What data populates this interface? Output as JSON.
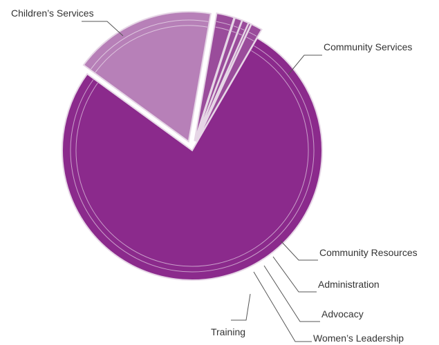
{
  "chart_data": {
    "type": "pie",
    "title": "",
    "slices": [
      {
        "label": "Children’s Services",
        "value": 76.7,
        "color": "#8b2a8c",
        "exploded": false
      },
      {
        "label": "Community Services",
        "value": 17.7,
        "color": "#b780b8",
        "exploded": true
      },
      {
        "label": "Community Resources",
        "value": 2.2,
        "color": "#9a4c9b",
        "exploded": true
      },
      {
        "label": "Administration",
        "value": 0.9,
        "color": "#9a4c9b",
        "exploded": true
      },
      {
        "label": "Advocacy",
        "value": 0.8,
        "color": "#9a4c9b",
        "exploded": true
      },
      {
        "label": "Women’s Leadership",
        "value": 0.3,
        "color": "#9a4c9b",
        "exploded": true
      },
      {
        "label": "Training",
        "value": 1.4,
        "color": "#9a4c9b",
        "exploded": true
      }
    ],
    "legend": "none",
    "labels": "outside with leader lines"
  }
}
